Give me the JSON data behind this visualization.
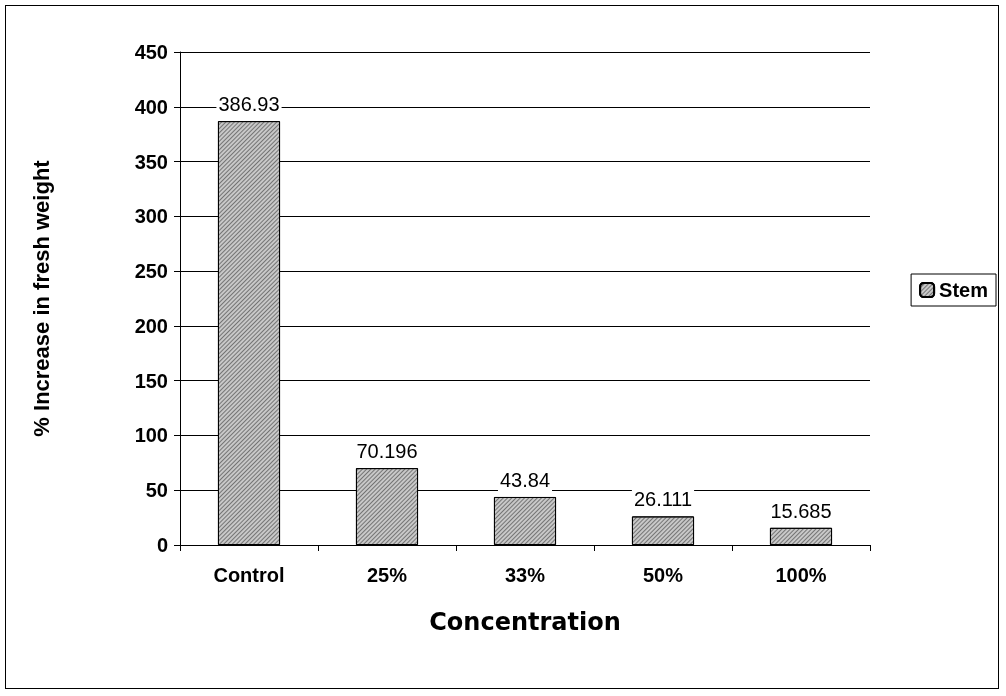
{
  "chart_data": {
    "type": "bar",
    "xlabel": "Concentration",
    "ylabel": "% Increase in fresh weight",
    "categories": [
      "Control",
      "25%",
      "33%",
      "50%",
      "100%"
    ],
    "series": [
      {
        "name": "Stem",
        "color": "#c8c8c8",
        "values": [
          386.93,
          70.196,
          43.84,
          26.111,
          15.685
        ]
      }
    ],
    "ylim": [
      0,
      450
    ],
    "yticks": [
      0,
      50,
      100,
      150,
      200,
      250,
      300,
      350,
      400,
      450
    ],
    "grid": "y",
    "legend": "right",
    "data_labels": true
  }
}
